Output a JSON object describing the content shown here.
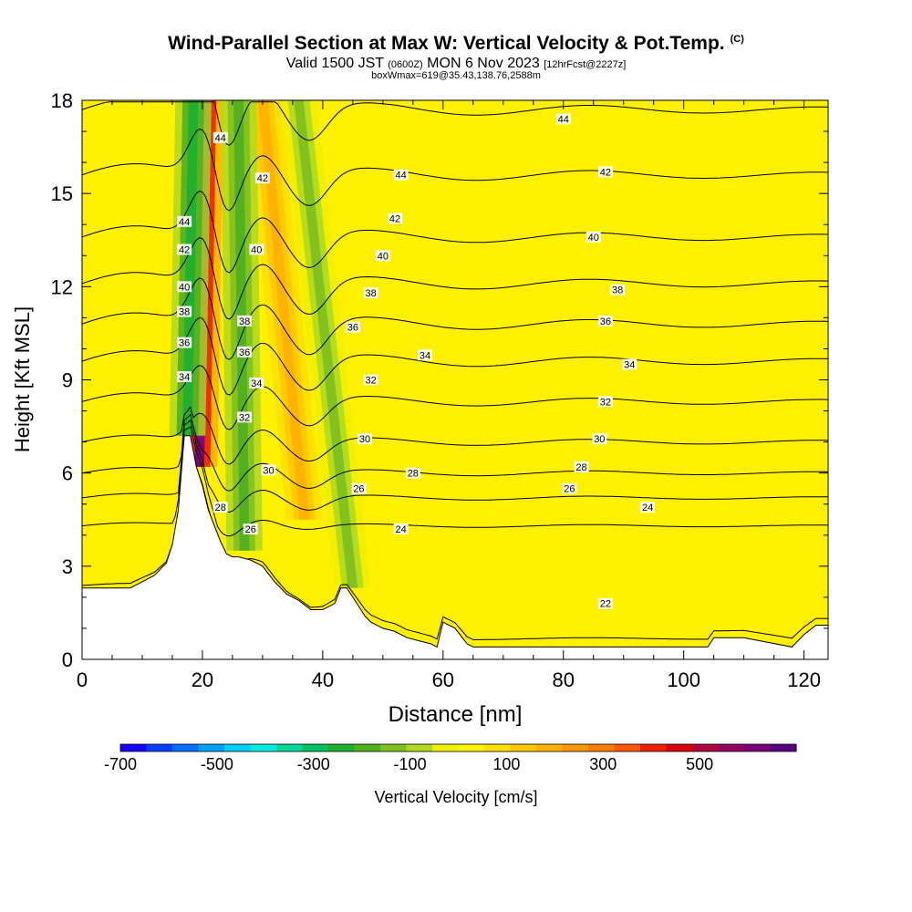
{
  "header": {
    "title": "Wind-Parallel Section at Max W: Vertical Velocity & Pot.Temp.",
    "copyright": "(C)",
    "valid_prefix": "Valid 1500 JST",
    "valid_utc": "(0600Z)",
    "valid_date": "MON 6 Nov 2023",
    "forecast": "[12hrFcst@2227z]",
    "box_info": "boxWmax=619@35.43,138.76,2588m"
  },
  "chart_data": {
    "type": "heatmap",
    "xlabel": "Distance [nm]",
    "ylabel": "Height [Kft MSL]",
    "xlim": [
      0,
      124
    ],
    "ylim": [
      0,
      18
    ],
    "x_ticks": [
      0,
      20,
      40,
      60,
      80,
      100,
      120
    ],
    "y_ticks": [
      0,
      3,
      6,
      9,
      12,
      15,
      18
    ],
    "colorbar": {
      "label": "Vertical Velocity [cm/s]",
      "tick_labels": [
        "-700",
        "-500",
        "-300",
        "-100",
        "100",
        "300",
        "500"
      ],
      "tick_values": [
        -700,
        -500,
        -300,
        -100,
        100,
        300,
        500
      ],
      "range": [
        -700,
        700
      ],
      "colors": [
        "#1800ff",
        "#0040ff",
        "#0070ff",
        "#00a0ff",
        "#00d0ff",
        "#00eee0",
        "#00d898",
        "#00c060",
        "#20b030",
        "#50b020",
        "#80c020",
        "#b0d820",
        "#f0f000",
        "#fff400",
        "#ffe000",
        "#ffc800",
        "#ffb000",
        "#ff9800",
        "#ff8000",
        "#ff5800",
        "#f02000",
        "#d80010",
        "#b00040",
        "#900060",
        "#7a0078",
        "#560080"
      ]
    },
    "terrain_profile": {
      "x": [
        0,
        8,
        10,
        12,
        14,
        15,
        16,
        17,
        18,
        19,
        20,
        21,
        22,
        23,
        24,
        25,
        26,
        28,
        30,
        32,
        34,
        36,
        38,
        40,
        42,
        43,
        44,
        45,
        46,
        47,
        48,
        50,
        52,
        54,
        56,
        58,
        59,
        60,
        62,
        64,
        65,
        70,
        80,
        90,
        100,
        104,
        105,
        110,
        118,
        120,
        122,
        124
      ],
      "height_kft": [
        2.3,
        2.3,
        2.5,
        2.7,
        3.1,
        3.7,
        4.8,
        7.2,
        7.2,
        6.2,
        5.6,
        4.8,
        4.3,
        3.8,
        3.4,
        3.3,
        3.3,
        3.2,
        3.0,
        2.5,
        2.1,
        1.9,
        1.6,
        1.6,
        1.8,
        2.3,
        2.3,
        2.0,
        1.7,
        1.4,
        1.2,
        1.0,
        0.9,
        0.7,
        0.6,
        0.5,
        0.4,
        1.2,
        1.0,
        0.5,
        0.4,
        0.4,
        0.4,
        0.4,
        0.4,
        0.4,
        0.7,
        0.7,
        0.4,
        0.8,
        1.1,
        1.1
      ]
    },
    "velocity_features": [
      {
        "name": "wave updraft core",
        "x_base": 19.5,
        "z_base": 6.2,
        "x_top": 20.5,
        "z_top": 18,
        "value": 600
      },
      {
        "name": "lee downdraft",
        "x_base": 17.5,
        "z_base": 7.2,
        "x_top": 18.5,
        "z_top": 18,
        "value": -250
      },
      {
        "name": "secondary updraft",
        "x_base": 37,
        "z_base": 4.5,
        "x_top": 30,
        "z_top": 18,
        "value": 200
      },
      {
        "name": "secondary downdraft",
        "x_base": 27,
        "z_base": 3.5,
        "x_top": 26,
        "z_top": 18,
        "value": -200
      },
      {
        "name": "tertiary downdraft",
        "x_base": 45,
        "z_base": 2.3,
        "x_top": 36,
        "z_top": 18,
        "value": -130
      }
    ],
    "theta_contours": [
      {
        "label": "22",
        "base_kft": 0.4
      },
      {
        "label": "24",
        "base_kft": 4.3
      },
      {
        "label": "26",
        "base_kft": 5.2
      },
      {
        "label": "28",
        "base_kft": 6.0
      },
      {
        "label": "30",
        "base_kft": 7.0
      },
      {
        "label": "32",
        "base_kft": 8.3
      },
      {
        "label": "34",
        "base_kft": 9.6
      },
      {
        "label": "36",
        "base_kft": 10.8
      },
      {
        "label": "38",
        "base_kft": 12.1
      },
      {
        "label": "40",
        "base_kft": 13.6
      },
      {
        "label": "42",
        "base_kft": 15.6
      },
      {
        "label": "44",
        "base_kft": 17.7
      }
    ],
    "contour_labels": [
      {
        "text": "44",
        "x": 80,
        "y": 17.4
      },
      {
        "text": "44",
        "x": 23,
        "y": 16.8
      },
      {
        "text": "44",
        "x": 53,
        "y": 15.6
      },
      {
        "text": "44",
        "x": 17,
        "y": 14.1
      },
      {
        "text": "42",
        "x": 30,
        "y": 15.5
      },
      {
        "text": "42",
        "x": 87,
        "y": 15.7
      },
      {
        "text": "42",
        "x": 52,
        "y": 14.2
      },
      {
        "text": "42",
        "x": 17,
        "y": 13.2
      },
      {
        "text": "40",
        "x": 29,
        "y": 13.2
      },
      {
        "text": "40",
        "x": 85,
        "y": 13.6
      },
      {
        "text": "40",
        "x": 50,
        "y": 13.0
      },
      {
        "text": "40",
        "x": 17,
        "y": 12.0
      },
      {
        "text": "38",
        "x": 48,
        "y": 11.8
      },
      {
        "text": "38",
        "x": 89,
        "y": 11.9
      },
      {
        "text": "38",
        "x": 17,
        "y": 11.2
      },
      {
        "text": "38",
        "x": 27,
        "y": 10.9
      },
      {
        "text": "36",
        "x": 45,
        "y": 10.7
      },
      {
        "text": "36",
        "x": 87,
        "y": 10.9
      },
      {
        "text": "36",
        "x": 17,
        "y": 10.2
      },
      {
        "text": "36",
        "x": 27,
        "y": 9.9
      },
      {
        "text": "34",
        "x": 57,
        "y": 9.8
      },
      {
        "text": "34",
        "x": 91,
        "y": 9.5
      },
      {
        "text": "34",
        "x": 17,
        "y": 9.1
      },
      {
        "text": "34",
        "x": 29,
        "y": 8.9
      },
      {
        "text": "32",
        "x": 48,
        "y": 9.0
      },
      {
        "text": "32",
        "x": 87,
        "y": 8.3
      },
      {
        "text": "32",
        "x": 27,
        "y": 7.8
      },
      {
        "text": "30",
        "x": 47,
        "y": 7.1
      },
      {
        "text": "30",
        "x": 86,
        "y": 7.1
      },
      {
        "text": "30",
        "x": 31,
        "y": 6.1
      },
      {
        "text": "28",
        "x": 55,
        "y": 6.0
      },
      {
        "text": "28",
        "x": 83,
        "y": 6.2
      },
      {
        "text": "28",
        "x": 23,
        "y": 4.9
      },
      {
        "text": "26",
        "x": 46,
        "y": 5.5
      },
      {
        "text": "26",
        "x": 81,
        "y": 5.5
      },
      {
        "text": "26",
        "x": 28,
        "y": 4.2
      },
      {
        "text": "24",
        "x": 53,
        "y": 4.2
      },
      {
        "text": "24",
        "x": 94,
        "y": 4.9
      },
      {
        "text": "22",
        "x": 87,
        "y": 1.8
      }
    ]
  }
}
